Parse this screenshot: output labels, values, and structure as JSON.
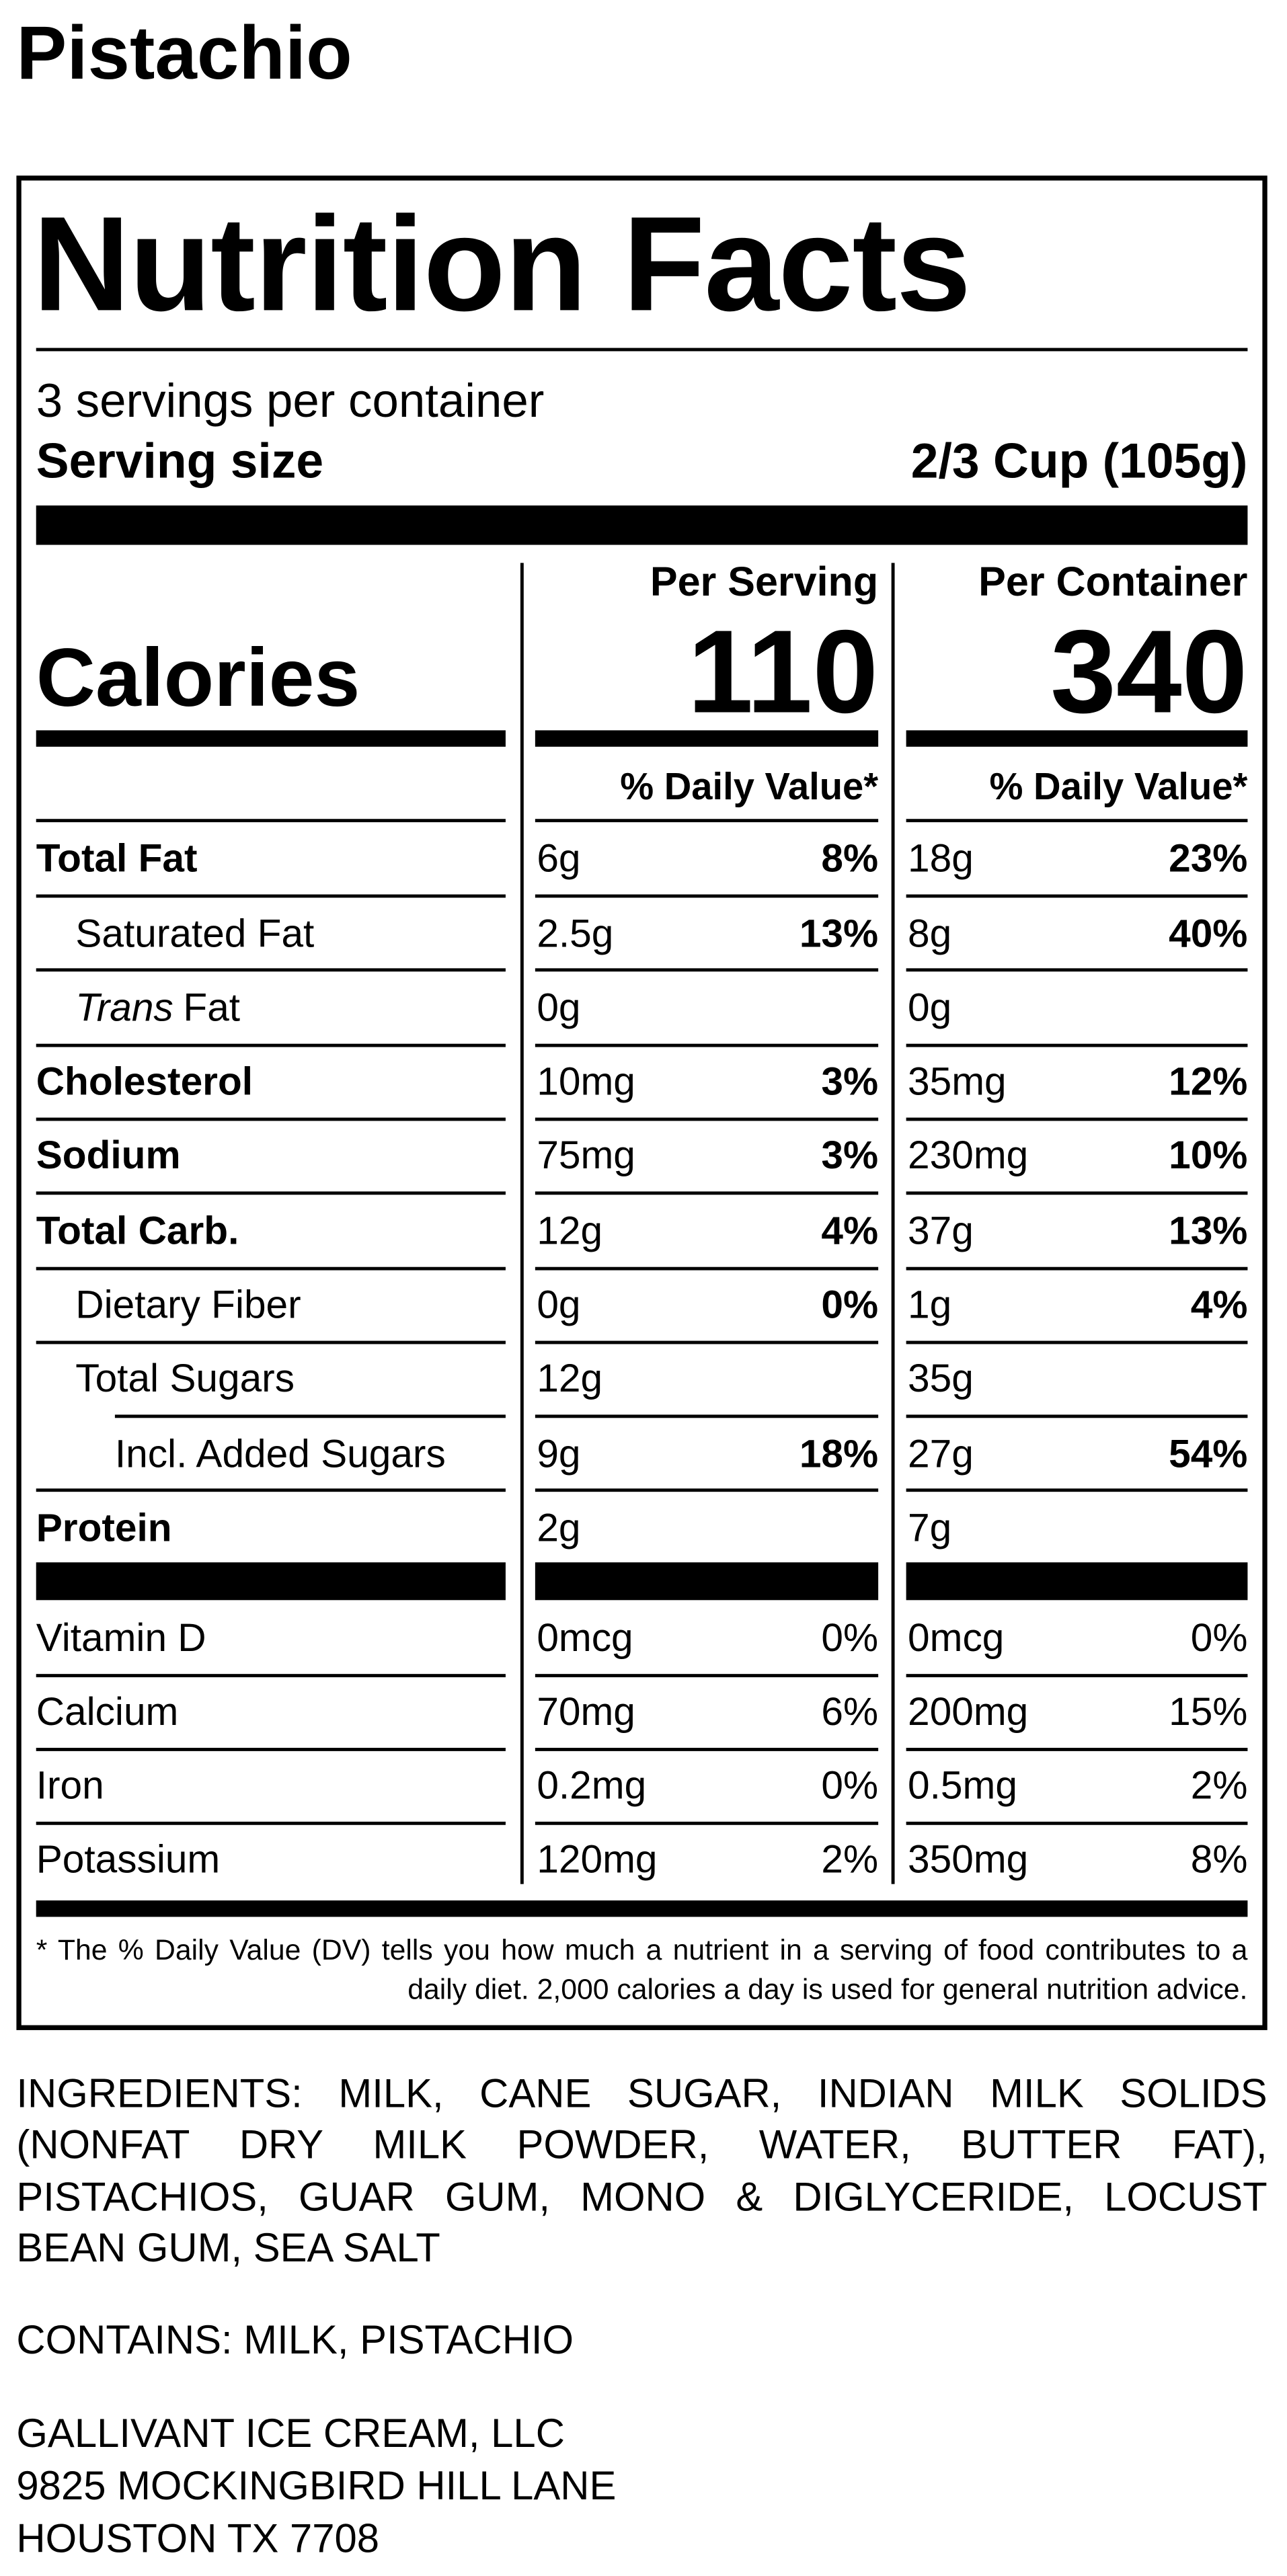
{
  "title": "Pistachio",
  "label": {
    "heading": "Nutrition Facts",
    "servings": "3 servings per container",
    "serving_size_label": "Serving size",
    "serving_size_value": "2/3 Cup (105g)",
    "per_serving": "Per Serving",
    "per_container": "Per Container",
    "calories_label": "Calories",
    "calories_serving": "110",
    "calories_container": "340",
    "dv_header_serving": "% Daily Value*",
    "dv_header_container": "% Daily Value*",
    "nutrients": [
      {
        "name": "Total Fat",
        "serving_amount": "6g",
        "serving_dv": "8%",
        "container_amount": "18g",
        "container_dv": "23%",
        "subrows": [
          {
            "name": "Saturated Fat",
            "serving_amount": "2.5g",
            "serving_dv": "13%",
            "container_amount": "8g",
            "container_dv": "40%"
          },
          {
            "name": {
              "italic": "Trans",
              "text": "Fat"
            },
            "serving_amount": "0g",
            "container_amount": "0g"
          }
        ]
      },
      {
        "name": "Cholesterol",
        "serving_amount": "10mg",
        "serving_dv": "3%",
        "container_amount": "35mg",
        "container_dv": "12%"
      },
      {
        "name": "Sodium",
        "serving_amount": "75mg",
        "serving_dv": "3%",
        "container_amount": "230mg",
        "container_dv": "10%"
      },
      {
        "name": "Total Carb.",
        "serving_amount": "12g",
        "serving_dv": "4%",
        "container_amount": "37g",
        "container_dv": "13%",
        "subrows": [
          {
            "name": "Dietary Fiber",
            "serving_amount": "0g",
            "serving_dv": "0%",
            "container_amount": "1g",
            "container_dv": "4%"
          },
          {
            "name": "Total Sugars",
            "serving_amount": "12g",
            "container_amount": "35g",
            "subrows": [
              {
                "name": "Incl. Added Sugars",
                "serving_amount": "9g",
                "serving_dv": "18%",
                "container_amount": "27g",
                "container_dv": "54%"
              }
            ]
          }
        ]
      },
      {
        "name": "Protein",
        "serving_amount": "2g",
        "container_amount": "7g"
      }
    ],
    "vitamins": [
      {
        "name": "Vitamin D",
        "serving_amount": "0mcg",
        "serving_dv": "0%",
        "container_amount": "0mcg",
        "container_dv": "0%"
      },
      {
        "name": "Calcium",
        "serving_amount": "70mg",
        "serving_dv": "6%",
        "container_amount": "200mg",
        "container_dv": "15%"
      },
      {
        "name": "Iron",
        "serving_amount": "0.2mg",
        "serving_dv": "0%",
        "container_amount": "0.5mg",
        "container_dv": "2%"
      },
      {
        "name": "Potassium",
        "serving_amount": "120mg",
        "serving_dv": "2%",
        "container_amount": "350mg",
        "container_dv": "8%"
      }
    ],
    "footnote": "* The % Daily Value (DV) tells you how much a nutrient in a serving of food contributes to a daily diet. 2,000 calories a day is used for general nutrition advice."
  },
  "ingredients": "INGREDIENTS: MILK, CANE SUGAR, INDIAN MILK SOLIDS (NONFAT DRY MILK POWDER, WATER, BUTTER FAT), PISTACHIOS, GUAR GUM, MONO & DIGLYCERIDE, LOCUST BEAN GUM, SEA SALT",
  "contains": "CONTAINS: MILK, PISTACHIO",
  "address": [
    "GALLIVANT ICE CREAM, LLC",
    "9825 MOCKINGBIRD HILL LANE",
    "HOUSTON TX 7708"
  ]
}
